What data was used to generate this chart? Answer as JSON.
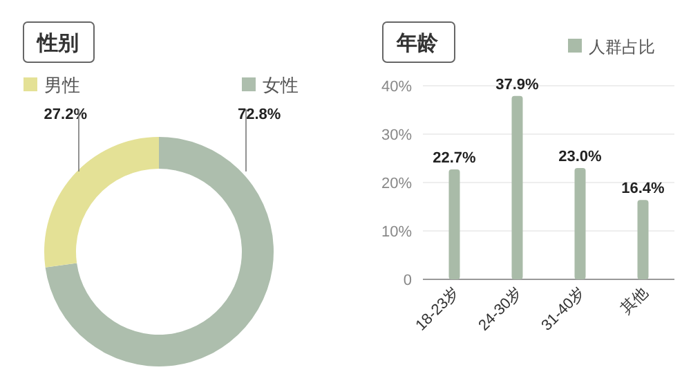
{
  "chart_data": [
    {
      "type": "donut",
      "title": "性别",
      "categories": [
        "男性",
        "女性"
      ],
      "values": [
        27.2,
        72.8
      ],
      "colors": [
        "#e4e196",
        "#adbead"
      ],
      "value_labels": [
        "27.2%",
        "72.8%"
      ],
      "legend": "top"
    },
    {
      "type": "bar",
      "title": "年龄",
      "categories": [
        "18-23岁",
        "24-30岁",
        "31-40岁",
        "其他"
      ],
      "series": [
        {
          "name": "人群占比",
          "color": "#a9bba8",
          "values": [
            22.7,
            37.9,
            23.0,
            16.4
          ],
          "value_labels": [
            "22.7%",
            "37.9%",
            "23.0%",
            "16.4%"
          ]
        }
      ],
      "ylim": [
        0,
        40
      ],
      "yticks": [
        0,
        {
          "value": 10,
          "label": "10%"
        },
        {
          "value": 20,
          "label": "20%"
        },
        {
          "value": 30,
          "label": "30%"
        },
        {
          "value": 40,
          "label": "40%"
        }
      ],
      "grid": "y",
      "legend": "top right"
    }
  ]
}
